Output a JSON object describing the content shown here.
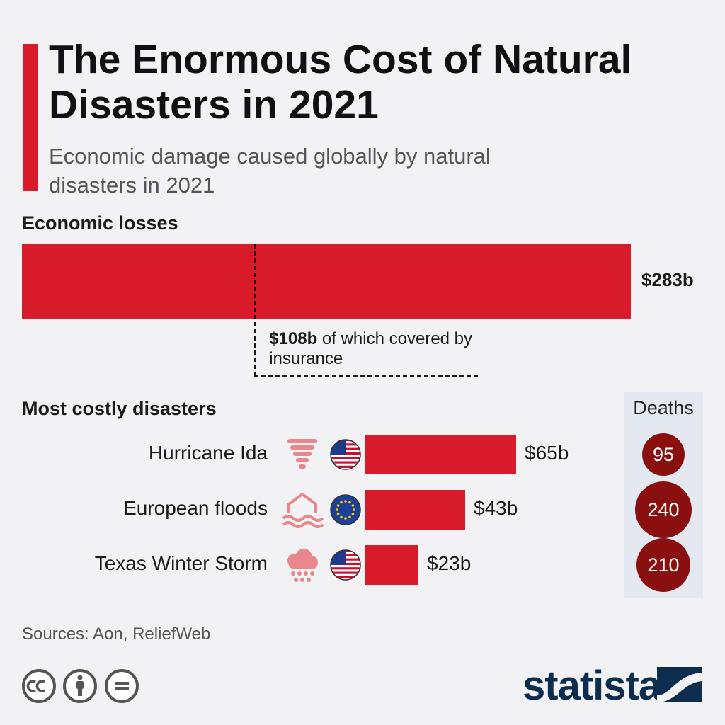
{
  "header": {
    "title": "The Enormous Cost of Natural Disasters in 2021",
    "subtitle": "Economic damage caused globally by natural disasters in 2021"
  },
  "colors": {
    "accent": "#d81b2a",
    "deaths": "#8a1010",
    "panel": "#e4e8f0",
    "brand": "#0d2d4f"
  },
  "economic": {
    "label": "Economic losses",
    "total_label": "$283b",
    "insured_amount": "$108b",
    "insured_text": " of which covered by insurance"
  },
  "disasters": {
    "label": "Most costly disasters",
    "deaths_header": "Deaths"
  },
  "chart_data": {
    "type": "bar",
    "total": {
      "value": 283,
      "insured": 108,
      "unit": "$b"
    },
    "categories": [
      "Hurricane Ida",
      "European floods",
      "Texas Winter Storm"
    ],
    "values": [
      65,
      43,
      23
    ],
    "value_labels": [
      "$65b",
      "$43b",
      "$23b"
    ],
    "deaths": [
      95,
      240,
      210
    ],
    "icons": [
      "tornado-icon",
      "flood-icon",
      "snow-storm-icon"
    ],
    "flags": [
      "us-flag-icon",
      "eu-flag-icon",
      "us-flag-icon"
    ]
  },
  "footer": {
    "sources": "Sources: Aon, ReliefWeb",
    "brand": "statista"
  }
}
